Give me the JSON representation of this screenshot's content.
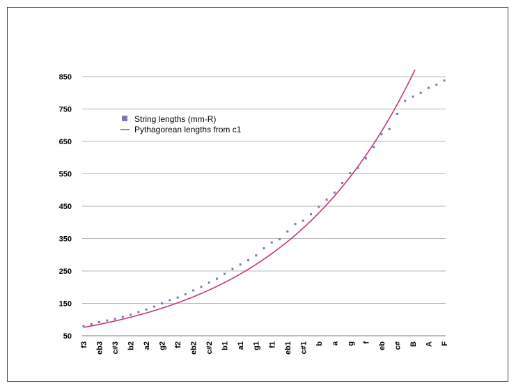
{
  "chart_data": {
    "type": "scatter",
    "title": "",
    "xlabel": "",
    "ylabel": "",
    "ylim": [
      50,
      850
    ],
    "yticks": [
      50,
      150,
      250,
      350,
      450,
      550,
      650,
      750,
      850
    ],
    "grid": true,
    "legend_position": "top-left",
    "categories": [
      "f3",
      "",
      "eb3",
      "",
      "c#3",
      "",
      "b2",
      "",
      "a2",
      "",
      "g2",
      "",
      "f2",
      "",
      "eb2",
      "",
      "c#2",
      "",
      "b1",
      "",
      "a1",
      "",
      "g1",
      "",
      "f1",
      "",
      "eb1",
      "",
      "c#1",
      "",
      "b",
      "",
      "a",
      "",
      "g",
      "",
      "f",
      "",
      "eb",
      "",
      "c#",
      "",
      "B",
      "",
      "A",
      "",
      "F"
    ],
    "series": [
      {
        "name": "String lengths (mm-R)",
        "kind": "points",
        "color": "#7b78b0",
        "values": [
          80,
          86,
          92,
          97,
          102,
          108,
          115,
          123,
          131,
          140,
          150,
          160,
          168,
          178,
          190,
          201,
          214,
          226,
          241,
          256,
          270,
          283,
          298,
          320,
          338,
          348,
          372,
          395,
          405,
          425,
          448,
          470,
          492,
          522,
          552,
          568,
          598,
          632,
          672,
          688,
          735,
          775,
          788,
          800,
          815,
          825,
          838
        ]
      },
      {
        "name": "Pythagorean lengths from c1",
        "kind": "line",
        "color": "#c2357a",
        "base_index": 29,
        "base_value": 405,
        "semitone_ratio": 1.0594631
      }
    ]
  }
}
